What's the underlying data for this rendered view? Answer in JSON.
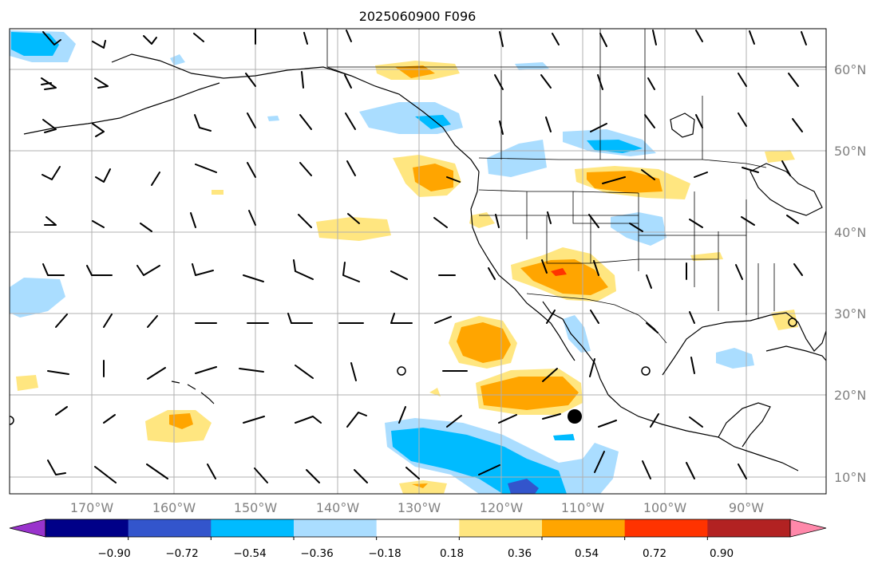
{
  "title": "2025060900 F096",
  "lon_labels": [
    "170°W",
    "160°W",
    "150°W",
    "140°W",
    "130°W",
    "120°W",
    "110°W",
    "100°W",
    "90°W"
  ],
  "lat_labels": [
    "60°N",
    "50°N",
    "40°N",
    "30°N",
    "20°N",
    "10°N"
  ],
  "colorbar": {
    "ticks": [
      "−0.90",
      "−0.72",
      "−0.54",
      "−0.36",
      "−0.18",
      "0.18",
      "0.36",
      "0.54",
      "0.72",
      "0.90"
    ],
    "colors": [
      "#9933cc",
      "#000088",
      "#3355cc",
      "#00bbff",
      "#aaddff",
      "#ffffff",
      "#ffe680",
      "#ffa500",
      "#ff3300",
      "#b22222",
      "#ff88aa"
    ]
  },
  "map": {
    "lon_range": [
      -180,
      -80
    ],
    "lat_range": [
      8,
      65
    ],
    "gridlines": true,
    "positive_fill": [
      "#ffe680",
      "#ffa500",
      "#ff3300"
    ],
    "negative_fill": [
      "#aaddff",
      "#00bbff",
      "#3355cc"
    ]
  }
}
